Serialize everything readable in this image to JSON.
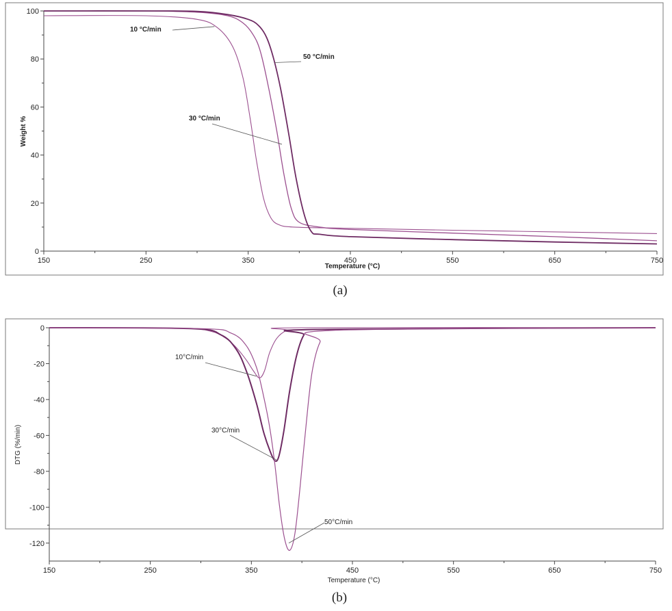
{
  "chart_data": [
    {
      "panel": "(a)",
      "type": "line",
      "title": "",
      "xlabel": "Temperature (°C)",
      "ylabel": "Weight %",
      "xlim": [
        150,
        750
      ],
      "ylim": [
        0,
        100
      ],
      "xticks": [
        "150",
        "250",
        "350",
        "450",
        "550",
        "650",
        "750"
      ],
      "yticks": [
        "0",
        "20",
        "40",
        "60",
        "80",
        "100"
      ],
      "colors": {
        "line": "#9b4f8f",
        "line_dark": "#6e2b63"
      },
      "series": [
        {
          "name": "10 °C/min",
          "x": [
            150,
            250,
            300,
            320,
            335,
            345,
            352,
            358,
            365,
            372,
            380,
            395,
            450,
            550,
            650,
            750
          ],
          "y": [
            98,
            98,
            96.5,
            93,
            85,
            72,
            55,
            38,
            22,
            14,
            11,
            10,
            9.5,
            8.7,
            8,
            7.3
          ]
        },
        {
          "name": "30 °C/min",
          "x": [
            150,
            250,
            300,
            330,
            345,
            355,
            362,
            370,
            378,
            385,
            392,
            400,
            420,
            450,
            550,
            650,
            750
          ],
          "y": [
            100,
            100,
            99.5,
            98,
            95,
            90,
            83,
            68,
            50,
            32,
            18,
            12,
            10,
            9,
            7.5,
            6,
            4.3
          ]
        },
        {
          "name": "50 °C/min",
          "x": [
            150,
            250,
            300,
            330,
            350,
            360,
            368,
            375,
            382,
            390,
            397,
            405,
            412,
            420,
            450,
            550,
            650,
            750
          ],
          "y": [
            100,
            100,
            99.8,
            98.5,
            96.5,
            94,
            89,
            80,
            67,
            48,
            30,
            15,
            8,
            7,
            6,
            4.8,
            3.8,
            3
          ]
        }
      ],
      "annotations": [
        {
          "text": "10 °C/min",
          "target": [
            317,
            93.5
          ]
        },
        {
          "text": "50 °C/min",
          "target": [
            376,
            78.5
          ]
        },
        {
          "text": "30 °C/min",
          "target": [
            383,
            44.5
          ]
        }
      ],
      "grid": false
    },
    {
      "panel": "(b)",
      "type": "line",
      "title": "",
      "xlabel": "Temperature (°C)",
      "ylabel": "DTG (%/min)",
      "xlim": [
        150,
        750
      ],
      "ylim": [
        -130,
        0
      ],
      "xticks": [
        "150",
        "250",
        "350",
        "450",
        "550",
        "650",
        "750"
      ],
      "yticks": [
        "0",
        "-20",
        "-40",
        "-60",
        "-80",
        "-100",
        "-120"
      ],
      "colors": {
        "line": "#9b4f8f",
        "line_dark": "#6e2b63"
      },
      "series": [
        {
          "name": "10°C/min",
          "x": [
            150,
            280,
            310,
            325,
            335,
            345,
            352,
            358,
            363,
            368,
            375,
            385,
            400,
            750
          ],
          "y": [
            0,
            -0.3,
            -2,
            -6,
            -11,
            -18,
            -24,
            -28,
            -24,
            -14,
            -6,
            -1.5,
            0,
            0
          ]
        },
        {
          "name": "30°C/min",
          "x": [
            150,
            290,
            320,
            335,
            345,
            355,
            362,
            368,
            373,
            377,
            382,
            388,
            395,
            402,
            410,
            750
          ],
          "y": [
            0,
            -0.5,
            -4,
            -12,
            -24,
            -42,
            -58,
            -68,
            -74,
            -72,
            -58,
            -35,
            -15,
            -4,
            -1,
            0
          ]
        },
        {
          "name": "50°C/min",
          "x": [
            150,
            300,
            330,
            345,
            355,
            362,
            368,
            373,
            378,
            383,
            388,
            393,
            398,
            404,
            410,
            418,
            430,
            750
          ],
          "y": [
            0,
            -0.5,
            -3,
            -10,
            -22,
            -38,
            -55,
            -75,
            -100,
            -118,
            -124,
            -115,
            -90,
            -55,
            -25,
            -8,
            -1.5,
            0
          ]
        }
      ],
      "annotations": [
        {
          "text": "10°C/min",
          "target": [
            355,
            -27
          ]
        },
        {
          "text": "30°C/min",
          "target": [
            376,
            -74
          ]
        },
        {
          "text": "50°C/min",
          "target": [
            387,
            -120
          ]
        }
      ],
      "grid": false
    }
  ],
  "captions": {
    "a": "(a)",
    "b": "(b)"
  }
}
